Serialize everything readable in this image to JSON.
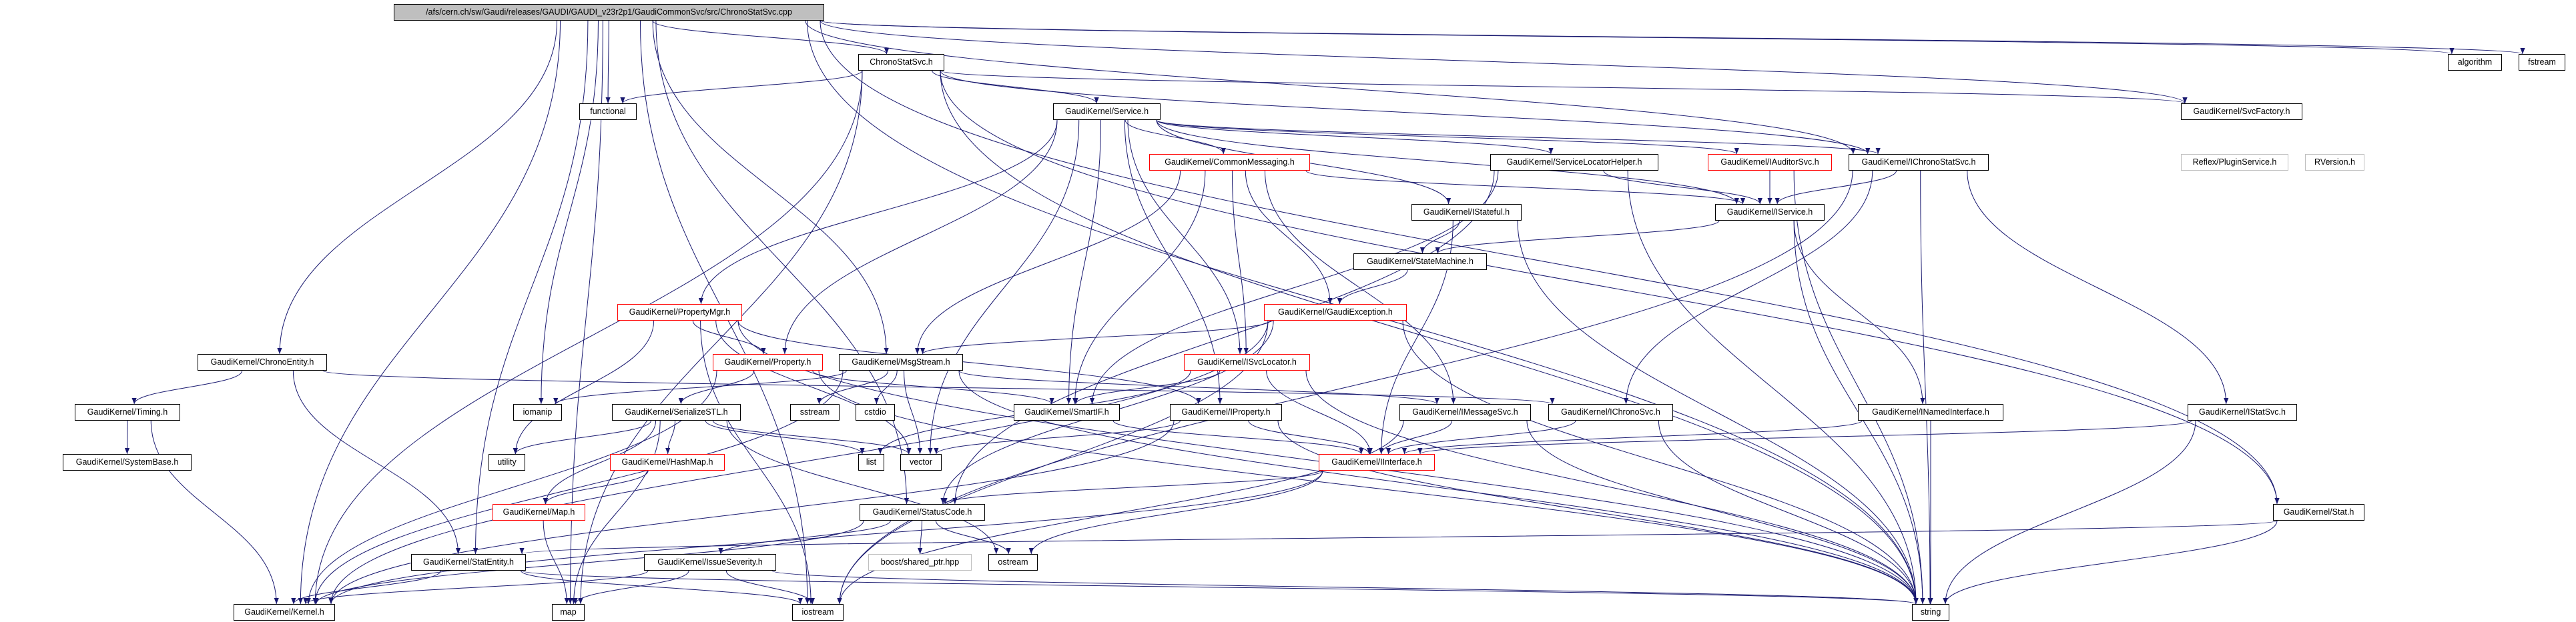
{
  "graph": {
    "type": "include-dependency-graph",
    "edge_color": "#191970",
    "root_fill": "#bfbfbf",
    "incomplete_border_color": "#ff0000",
    "undocumented_border_color": "#bfbfbf",
    "nodes": [
      {
        "id": "root",
        "label": "/afs/cern.ch/sw/Gaudi/releases/GAUDI/GAUDI_v23r2p1/GaudiCommonSvc/src/ChronoStatSvc.cpp",
        "style": "root"
      },
      {
        "id": "ChronoStatSvc",
        "label": "ChronoStatSvc.h",
        "style": "normal"
      },
      {
        "id": "algorithm",
        "label": "algorithm",
        "style": "normal"
      },
      {
        "id": "fstream",
        "label": "fstream",
        "style": "normal"
      },
      {
        "id": "functional",
        "label": "functional",
        "style": "normal"
      },
      {
        "id": "Service",
        "label": "GaudiKernel/Service.h",
        "style": "normal"
      },
      {
        "id": "SvcFactory",
        "label": "GaudiKernel/SvcFactory.h",
        "style": "normal"
      },
      {
        "id": "CommonMessaging",
        "label": "GaudiKernel/CommonMessaging.h",
        "style": "red"
      },
      {
        "id": "ServiceLocatorHelper",
        "label": "GaudiKernel/ServiceLocatorHelper.h",
        "style": "normal"
      },
      {
        "id": "IAuditorSvc",
        "label": "GaudiKernel/IAuditorSvc.h",
        "style": "red"
      },
      {
        "id": "IChronoStatSvc",
        "label": "GaudiKernel/IChronoStatSvc.h",
        "style": "normal"
      },
      {
        "id": "PluginService",
        "label": "Reflex/PluginService.h",
        "style": "gray"
      },
      {
        "id": "RVersion",
        "label": "RVersion.h",
        "style": "gray"
      },
      {
        "id": "IStateful",
        "label": "GaudiKernel/IStateful.h",
        "style": "normal"
      },
      {
        "id": "IService",
        "label": "GaudiKernel/IService.h",
        "style": "normal"
      },
      {
        "id": "StateMachine",
        "label": "GaudiKernel/StateMachine.h",
        "style": "normal"
      },
      {
        "id": "PropertyMgr",
        "label": "GaudiKernel/PropertyMgr.h",
        "style": "red"
      },
      {
        "id": "GaudiException",
        "label": "GaudiKernel/GaudiException.h",
        "style": "red"
      },
      {
        "id": "ChronoEntity",
        "label": "GaudiKernel/ChronoEntity.h",
        "style": "normal"
      },
      {
        "id": "Property",
        "label": "GaudiKernel/Property.h",
        "style": "red"
      },
      {
        "id": "MsgStream",
        "label": "GaudiKernel/MsgStream.h",
        "style": "normal"
      },
      {
        "id": "ISvcLocator",
        "label": "GaudiKernel/ISvcLocator.h",
        "style": "red"
      },
      {
        "id": "Timing",
        "label": "GaudiKernel/Timing.h",
        "style": "normal"
      },
      {
        "id": "iomanip",
        "label": "iomanip",
        "style": "normal"
      },
      {
        "id": "SerializeSTL",
        "label": "GaudiKernel/SerializeSTL.h",
        "style": "normal"
      },
      {
        "id": "sstream",
        "label": "sstream",
        "style": "normal"
      },
      {
        "id": "cstdio",
        "label": "cstdio",
        "style": "normal"
      },
      {
        "id": "SmartIF",
        "label": "GaudiKernel/SmartIF.h",
        "style": "normal"
      },
      {
        "id": "IProperty",
        "label": "GaudiKernel/IProperty.h",
        "style": "normal"
      },
      {
        "id": "IMessageSvc",
        "label": "GaudiKernel/IMessageSvc.h",
        "style": "normal"
      },
      {
        "id": "IChronoSvc",
        "label": "GaudiKernel/IChronoSvc.h",
        "style": "normal"
      },
      {
        "id": "INamedInterface",
        "label": "GaudiKernel/INamedInterface.h",
        "style": "normal"
      },
      {
        "id": "IStatSvc",
        "label": "GaudiKernel/IStatSvc.h",
        "style": "normal"
      },
      {
        "id": "SystemBase",
        "label": "GaudiKernel/SystemBase.h",
        "style": "normal"
      },
      {
        "id": "utility",
        "label": "utility",
        "style": "normal"
      },
      {
        "id": "HashMap",
        "label": "GaudiKernel/HashMap.h",
        "style": "red"
      },
      {
        "id": "list",
        "label": "list",
        "style": "normal"
      },
      {
        "id": "vector",
        "label": "vector",
        "style": "normal"
      },
      {
        "id": "IInterface",
        "label": "GaudiKernel/IInterface.h",
        "style": "red"
      },
      {
        "id": "Map",
        "label": "GaudiKernel/Map.h",
        "style": "red"
      },
      {
        "id": "StatusCode",
        "label": "GaudiKernel/StatusCode.h",
        "style": "normal"
      },
      {
        "id": "Stat",
        "label": "GaudiKernel/Stat.h",
        "style": "normal"
      },
      {
        "id": "StatEntity",
        "label": "GaudiKernel/StatEntity.h",
        "style": "normal"
      },
      {
        "id": "IssueSeverity",
        "label": "GaudiKernel/IssueSeverity.h",
        "style": "normal"
      },
      {
        "id": "boost",
        "label": "boost/shared_ptr.hpp",
        "style": "gray"
      },
      {
        "id": "ostream",
        "label": "ostream",
        "style": "normal"
      },
      {
        "id": "Kernel",
        "label": "GaudiKernel/Kernel.h",
        "style": "normal"
      },
      {
        "id": "map",
        "label": "map",
        "style": "normal"
      },
      {
        "id": "iostream",
        "label": "iostream",
        "style": "normal"
      },
      {
        "id": "string",
        "label": "string",
        "style": "normal"
      }
    ],
    "edges": [
      [
        "root",
        "Kernel"
      ],
      [
        "root",
        "ChronoEntity"
      ],
      [
        "root",
        "StatEntity"
      ],
      [
        "root",
        "iostream"
      ],
      [
        "root",
        "StatusCode"
      ],
      [
        "root",
        "iomanip"
      ],
      [
        "root",
        "MsgStream"
      ],
      [
        "root",
        "functional"
      ],
      [
        "root",
        "ChronoStatSvc"
      ],
      [
        "root",
        "IChronoStatSvc"
      ],
      [
        "root",
        "SvcFactory"
      ],
      [
        "root",
        "string"
      ],
      [
        "root",
        "algorithm"
      ],
      [
        "root",
        "fstream"
      ],
      [
        "root",
        "Stat"
      ],
      [
        "root",
        "map"
      ],
      [
        "ChronoStatSvc",
        "functional"
      ],
      [
        "ChronoStatSvc",
        "Kernel"
      ],
      [
        "ChronoStatSvc",
        "map"
      ],
      [
        "ChronoStatSvc",
        "Service"
      ],
      [
        "ChronoStatSvc",
        "SvcFactory"
      ],
      [
        "ChronoStatSvc",
        "IChronoStatSvc"
      ],
      [
        "ChronoStatSvc",
        "string"
      ],
      [
        "ChronoStatSvc",
        "Stat"
      ],
      [
        "Service",
        "PropertyMgr"
      ],
      [
        "Service",
        "Property"
      ],
      [
        "Service",
        "vector"
      ],
      [
        "Service",
        "SmartIF"
      ],
      [
        "Service",
        "IProperty"
      ],
      [
        "Service",
        "ISvcLocator"
      ],
      [
        "Service",
        "CommonMessaging"
      ],
      [
        "Service",
        "ServiceLocatorHelper"
      ],
      [
        "Service",
        "IStateful"
      ],
      [
        "Service",
        "IAuditorSvc"
      ],
      [
        "Service",
        "IService"
      ],
      [
        "Service",
        "IChronoStatSvc"
      ],
      [
        "CommonMessaging",
        "MsgStream"
      ],
      [
        "CommonMessaging",
        "SmartIF"
      ],
      [
        "CommonMessaging",
        "ISvcLocator"
      ],
      [
        "CommonMessaging",
        "GaudiException"
      ],
      [
        "CommonMessaging",
        "IMessageSvc"
      ],
      [
        "CommonMessaging",
        "IService"
      ],
      [
        "ServiceLocatorHelper",
        "IService"
      ],
      [
        "ServiceLocatorHelper",
        "SmartIF"
      ],
      [
        "ServiceLocatorHelper",
        "string"
      ],
      [
        "ServiceLocatorHelper",
        "StatusCode"
      ],
      [
        "IStateful",
        "StateMachine"
      ],
      [
        "IStateful",
        "IInterface"
      ],
      [
        "IStateful",
        "string"
      ],
      [
        "StateMachine",
        "GaudiException"
      ],
      [
        "IAuditorSvc",
        "IService"
      ],
      [
        "IAuditorSvc",
        "string"
      ],
      [
        "IChronoStatSvc",
        "IService"
      ],
      [
        "IChronoStatSvc",
        "IChronoSvc"
      ],
      [
        "IChronoStatSvc",
        "IStatSvc"
      ],
      [
        "IChronoStatSvc",
        "string"
      ],
      [
        "IChronoStatSvc",
        "iostream"
      ],
      [
        "IService",
        "INamedInterface"
      ],
      [
        "IService",
        "StateMachine"
      ],
      [
        "IService",
        "string"
      ],
      [
        "GaudiException",
        "MsgStream"
      ],
      [
        "GaudiException",
        "StatusCode"
      ],
      [
        "GaudiException",
        "string"
      ],
      [
        "GaudiException",
        "iostream"
      ],
      [
        "GaudiException",
        "Kernel"
      ],
      [
        "PropertyMgr",
        "Property"
      ],
      [
        "PropertyMgr",
        "IProperty"
      ],
      [
        "PropertyMgr",
        "vector"
      ],
      [
        "PropertyMgr",
        "utility"
      ],
      [
        "PropertyMgr",
        "iostream"
      ],
      [
        "PropertyMgr",
        "string"
      ],
      [
        "Property",
        "SerializeSTL"
      ],
      [
        "Property",
        "SmartIF"
      ],
      [
        "Property",
        "string"
      ],
      [
        "Property",
        "Kernel"
      ],
      [
        "ChronoEntity",
        "Timing"
      ],
      [
        "ChronoEntity",
        "StatEntity"
      ],
      [
        "ChronoEntity",
        "IChronoSvc"
      ],
      [
        "Timing",
        "SystemBase"
      ],
      [
        "Timing",
        "Kernel"
      ],
      [
        "MsgStream",
        "iomanip"
      ],
      [
        "MsgStream",
        "sstream"
      ],
      [
        "MsgStream",
        "cstdio"
      ],
      [
        "MsgStream",
        "vector"
      ],
      [
        "MsgStream",
        "IMessageSvc"
      ],
      [
        "MsgStream",
        "string"
      ],
      [
        "MsgStream",
        "Kernel"
      ],
      [
        "SerializeSTL",
        "utility"
      ],
      [
        "SerializeSTL",
        "HashMap"
      ],
      [
        "SerializeSTL",
        "Map"
      ],
      [
        "SerializeSTL",
        "list"
      ],
      [
        "SerializeSTL",
        "vector"
      ],
      [
        "SerializeSTL",
        "map"
      ],
      [
        "SerializeSTL",
        "ostream"
      ],
      [
        "HashMap",
        "Map"
      ],
      [
        "Map",
        "map"
      ],
      [
        "ISvcLocator",
        "SmartIF"
      ],
      [
        "ISvcLocator",
        "IInterface"
      ],
      [
        "ISvcLocator",
        "string"
      ],
      [
        "ISvcLocator",
        "list"
      ],
      [
        "SmartIF",
        "IInterface"
      ],
      [
        "IProperty",
        "IInterface"
      ],
      [
        "IProperty",
        "vector"
      ],
      [
        "IProperty",
        "string"
      ],
      [
        "IProperty",
        "Kernel"
      ],
      [
        "IMessageSvc",
        "IInterface"
      ],
      [
        "IMessageSvc",
        "string"
      ],
      [
        "IMessageSvc",
        "iostream"
      ],
      [
        "IChronoSvc",
        "IInterface"
      ],
      [
        "IChronoSvc",
        "string"
      ],
      [
        "INamedInterface",
        "IInterface"
      ],
      [
        "INamedInterface",
        "string"
      ],
      [
        "IStatSvc",
        "IInterface"
      ],
      [
        "IStatSvc",
        "string"
      ],
      [
        "IInterface",
        "StatusCode"
      ],
      [
        "IInterface",
        "Kernel"
      ],
      [
        "IInterface",
        "ostream"
      ],
      [
        "StatusCode",
        "boost"
      ],
      [
        "StatusCode",
        "ostream"
      ],
      [
        "StatusCode",
        "IssueSeverity"
      ],
      [
        "StatusCode",
        "Kernel"
      ],
      [
        "Stat",
        "StatEntity"
      ],
      [
        "Stat",
        "string"
      ],
      [
        "StatEntity",
        "Kernel"
      ],
      [
        "StatEntity",
        "string"
      ],
      [
        "StatEntity",
        "iostream"
      ],
      [
        "IssueSeverity",
        "Kernel"
      ],
      [
        "IssueSeverity",
        "map"
      ],
      [
        "IssueSeverity",
        "iostream"
      ],
      [
        "IssueSeverity",
        "string"
      ]
    ]
  }
}
